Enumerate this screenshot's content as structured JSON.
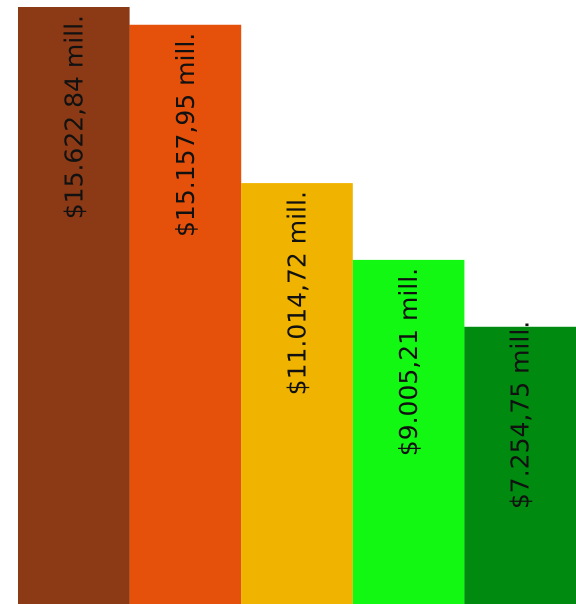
{
  "chart_data": {
    "type": "bar",
    "title": "",
    "xlabel": "",
    "ylabel": "",
    "ylim": [
      0,
      15622.84
    ],
    "grid": false,
    "legend": "none",
    "categories": [
      "",
      "",
      "",
      "",
      ""
    ],
    "values": [
      15622.84,
      15157.95,
      11014.72,
      9005.21,
      7254.75
    ],
    "labels": [
      "$15.622,84 mill.",
      "$15.157,95 mill.",
      "$11.014,72 mill.",
      "$9.005,21 mill.",
      "$7.254,75 mill."
    ],
    "colors": [
      "#8b3a15",
      "#e5500a",
      "#f0b400",
      "#12f812",
      "#008a10"
    ]
  }
}
